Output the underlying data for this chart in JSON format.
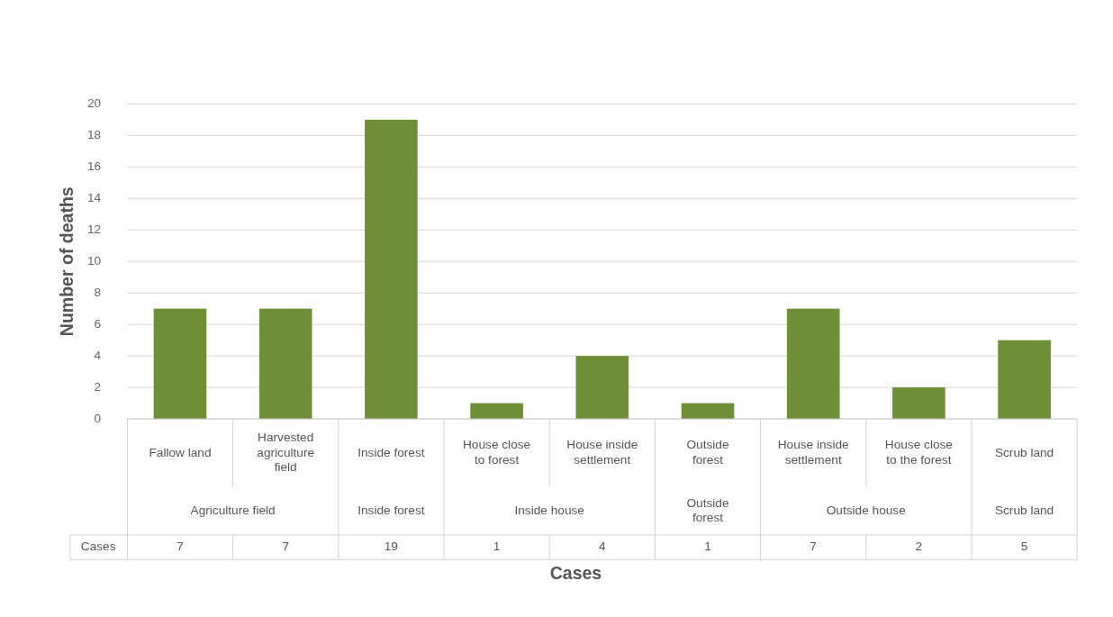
{
  "chart_data": {
    "type": "bar",
    "xlabel": "Cases",
    "ylabel": "Number of deaths",
    "categories": [
      "Fallow land",
      "Harvested agriculture field",
      "Inside forest",
      "House close to forest",
      "House inside settlement",
      "Outside forest",
      "House inside settlement",
      "House close to the forest",
      "Scrub land"
    ],
    "values": [
      7,
      7,
      19,
      1,
      4,
      1,
      7,
      2,
      5
    ],
    "color": "#6e8f35",
    "ylim": [
      0,
      20
    ],
    "yticks": [
      0,
      2,
      4,
      6,
      8,
      10,
      12,
      14,
      16,
      18,
      20
    ],
    "grid": "y",
    "data_labels": true,
    "annotations": [
      "Agriculture field",
      "Inside forest",
      "Inside house",
      "Outside forest",
      "Outside house",
      "Scrub land",
      "Cases"
    ]
  }
}
